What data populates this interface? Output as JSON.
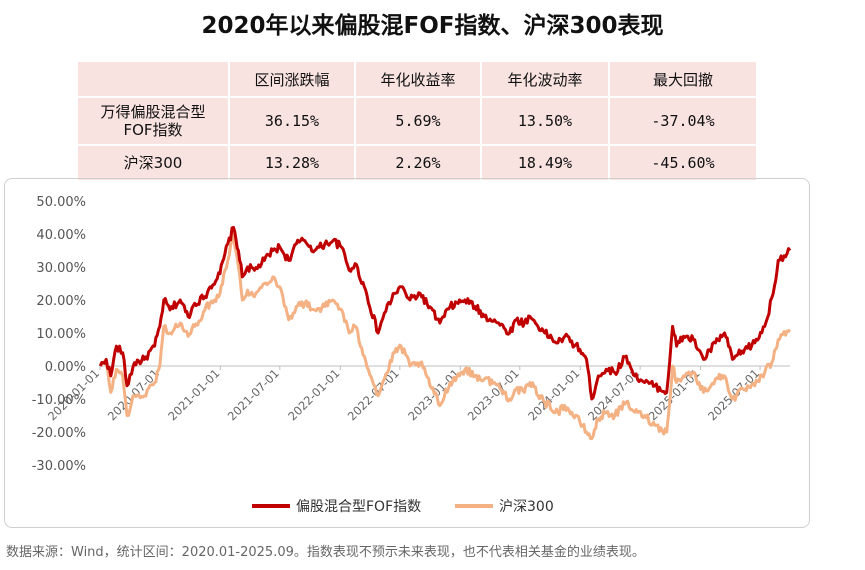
{
  "title": "2020年以来偏股混FOF指数、沪深300表现",
  "table": {
    "headers": [
      "",
      "区间涨跌幅",
      "年化收益率",
      "年化波动率",
      "最大回撤"
    ],
    "rows": [
      {
        "name": "万得偏股混合型FOF指数",
        "values": [
          "36.15%",
          "5.69%",
          "13.50%",
          "-37.04%"
        ]
      },
      {
        "name": "沪深300",
        "values": [
          "13.28%",
          "2.26%",
          "18.49%",
          "-45.60%"
        ]
      }
    ]
  },
  "source": "数据来源：Wind，统计区间：2020.01-2025.09。指数表现不预示未来表现，也不代表相关基金的业绩表现。",
  "colors": {
    "fof": "#c00000",
    "hs300": "#f4b183"
  },
  "chart_data": {
    "type": "line",
    "ylim": [
      -30,
      50
    ],
    "yticks": [
      -30,
      -20,
      -10,
      0,
      10,
      20,
      30,
      40,
      50
    ],
    "ytick_labels": [
      "-30.00%",
      "-20.00%",
      "-10.00%",
      "0.00%",
      "10.00%",
      "20.00%",
      "30.00%",
      "40.00%",
      "50.00%"
    ],
    "xlim": [
      "2020-01-01",
      "2025-09-30"
    ],
    "xticks": [
      "2020-01-01",
      "2020-07-01",
      "2021-01-01",
      "2021-07-01",
      "2022-01-01",
      "2022-07-01",
      "2023-01-01",
      "2023-07-01",
      "2024-01-01",
      "2024-07-01",
      "2025-01-01",
      "2025-07-01"
    ],
    "legend_placement": "bottom",
    "series": [
      {
        "name": "偏股混合型FOF指数",
        "points": [
          [
            "2020-01-02",
            0
          ],
          [
            "2020-01-20",
            2
          ],
          [
            "2020-02-03",
            -3
          ],
          [
            "2020-02-20",
            6
          ],
          [
            "2020-03-10",
            4
          ],
          [
            "2020-03-23",
            -6
          ],
          [
            "2020-04-15",
            1
          ],
          [
            "2020-05-15",
            2
          ],
          [
            "2020-06-15",
            6
          ],
          [
            "2020-07-01",
            12
          ],
          [
            "2020-07-13",
            20
          ],
          [
            "2020-08-01",
            17
          ],
          [
            "2020-09-01",
            20
          ],
          [
            "2020-09-25",
            15
          ],
          [
            "2020-10-15",
            19
          ],
          [
            "2020-11-15",
            21
          ],
          [
            "2020-12-01",
            24
          ],
          [
            "2020-12-31",
            28
          ],
          [
            "2021-01-15",
            34
          ],
          [
            "2021-02-10",
            42
          ],
          [
            "2021-02-25",
            35
          ],
          [
            "2021-03-09",
            27
          ],
          [
            "2021-03-25",
            30
          ],
          [
            "2021-04-15",
            29
          ],
          [
            "2021-05-15",
            32
          ],
          [
            "2021-06-10",
            35
          ],
          [
            "2021-07-01",
            36
          ],
          [
            "2021-07-28",
            32
          ],
          [
            "2021-08-20",
            37
          ],
          [
            "2021-09-15",
            38
          ],
          [
            "2021-10-15",
            35
          ],
          [
            "2021-11-15",
            37
          ],
          [
            "2021-12-10",
            38
          ],
          [
            "2022-01-05",
            36
          ],
          [
            "2022-01-28",
            29
          ],
          [
            "2022-02-15",
            31
          ],
          [
            "2022-03-15",
            24
          ],
          [
            "2022-04-26",
            10
          ],
          [
            "2022-05-15",
            16
          ],
          [
            "2022-06-15",
            22
          ],
          [
            "2022-07-05",
            24
          ],
          [
            "2022-08-01",
            20
          ],
          [
            "2022-09-01",
            22
          ],
          [
            "2022-10-31",
            13
          ],
          [
            "2022-12-01",
            18
          ],
          [
            "2023-01-15",
            20
          ],
          [
            "2023-02-15",
            18
          ],
          [
            "2023-03-15",
            15
          ],
          [
            "2023-04-15",
            14
          ],
          [
            "2023-05-31",
            10
          ],
          [
            "2023-06-20",
            14
          ],
          [
            "2023-07-15",
            13
          ],
          [
            "2023-08-01",
            15
          ],
          [
            "2023-09-15",
            10
          ],
          [
            "2023-10-25",
            7
          ],
          [
            "2023-11-15",
            9
          ],
          [
            "2023-12-31",
            5
          ],
          [
            "2024-01-20",
            2
          ],
          [
            "2024-02-05",
            -10
          ],
          [
            "2024-02-25",
            -3
          ],
          [
            "2024-03-20",
            -1
          ],
          [
            "2024-04-15",
            -2
          ],
          [
            "2024-05-20",
            3
          ],
          [
            "2024-06-15",
            -3
          ],
          [
            "2024-07-15",
            -5
          ],
          [
            "2024-08-15",
            -6
          ],
          [
            "2024-09-20",
            -8
          ],
          [
            "2024-10-08",
            12
          ],
          [
            "2024-10-20",
            6
          ],
          [
            "2024-11-10",
            9
          ],
          [
            "2024-12-10",
            8
          ],
          [
            "2025-01-10",
            2
          ],
          [
            "2025-02-15",
            7
          ],
          [
            "2025-03-15",
            10
          ],
          [
            "2025-04-08",
            2
          ],
          [
            "2025-05-15",
            5
          ],
          [
            "2025-06-15",
            7
          ],
          [
            "2025-07-15",
            12
          ],
          [
            "2025-08-10",
            22
          ],
          [
            "2025-08-25",
            32
          ],
          [
            "2025-09-30",
            35
          ]
        ]
      },
      {
        "name": "沪深300",
        "points": [
          [
            "2020-01-02",
            0
          ],
          [
            "2020-01-20",
            1
          ],
          [
            "2020-02-03",
            -8
          ],
          [
            "2020-02-20",
            -1
          ],
          [
            "2020-03-10",
            -3
          ],
          [
            "2020-03-23",
            -15
          ],
          [
            "2020-04-15",
            -9
          ],
          [
            "2020-05-15",
            -9
          ],
          [
            "2020-06-15",
            -5
          ],
          [
            "2020-07-01",
            0
          ],
          [
            "2020-07-13",
            12
          ],
          [
            "2020-08-01",
            10
          ],
          [
            "2020-09-01",
            13
          ],
          [
            "2020-09-25",
            9
          ],
          [
            "2020-10-15",
            12
          ],
          [
            "2020-11-15",
            17
          ],
          [
            "2020-12-01",
            19
          ],
          [
            "2020-12-31",
            22
          ],
          [
            "2021-01-15",
            29
          ],
          [
            "2021-02-10",
            40
          ],
          [
            "2021-02-25",
            30
          ],
          [
            "2021-03-09",
            20
          ],
          [
            "2021-03-25",
            23
          ],
          [
            "2021-04-15",
            21
          ],
          [
            "2021-05-15",
            25
          ],
          [
            "2021-06-10",
            27
          ],
          [
            "2021-07-01",
            24
          ],
          [
            "2021-07-28",
            14
          ],
          [
            "2021-08-20",
            18
          ],
          [
            "2021-09-15",
            19
          ],
          [
            "2021-10-15",
            17
          ],
          [
            "2021-11-15",
            18
          ],
          [
            "2021-12-10",
            20
          ],
          [
            "2022-01-05",
            17
          ],
          [
            "2022-01-28",
            10
          ],
          [
            "2022-02-15",
            12
          ],
          [
            "2022-03-15",
            3
          ],
          [
            "2022-04-26",
            -9
          ],
          [
            "2022-05-15",
            -4
          ],
          [
            "2022-06-15",
            4
          ],
          [
            "2022-07-05",
            6
          ],
          [
            "2022-08-01",
            0
          ],
          [
            "2022-09-01",
            1
          ],
          [
            "2022-10-31",
            -12
          ],
          [
            "2022-12-01",
            -5
          ],
          [
            "2023-01-15",
            -1
          ],
          [
            "2023-02-15",
            -3
          ],
          [
            "2023-03-15",
            -4
          ],
          [
            "2023-04-15",
            -5
          ],
          [
            "2023-05-31",
            -10
          ],
          [
            "2023-06-20",
            -7
          ],
          [
            "2023-07-15",
            -8
          ],
          [
            "2023-08-01",
            -5
          ],
          [
            "2023-09-15",
            -11
          ],
          [
            "2023-10-25",
            -14
          ],
          [
            "2023-11-15",
            -12
          ],
          [
            "2023-12-31",
            -17
          ],
          [
            "2024-01-20",
            -20
          ],
          [
            "2024-02-05",
            -22
          ],
          [
            "2024-02-25",
            -16
          ],
          [
            "2024-03-20",
            -14
          ],
          [
            "2024-04-15",
            -15
          ],
          [
            "2024-05-20",
            -11
          ],
          [
            "2024-06-15",
            -14
          ],
          [
            "2024-07-15",
            -15
          ],
          [
            "2024-08-15",
            -18
          ],
          [
            "2024-09-20",
            -20
          ],
          [
            "2024-10-08",
            0
          ],
          [
            "2024-10-20",
            -5
          ],
          [
            "2024-11-10",
            -3
          ],
          [
            "2024-12-10",
            -2
          ],
          [
            "2025-01-10",
            -8
          ],
          [
            "2025-02-15",
            -4
          ],
          [
            "2025-03-15",
            -3
          ],
          [
            "2025-04-08",
            -10
          ],
          [
            "2025-05-15",
            -7
          ],
          [
            "2025-06-15",
            -6
          ],
          [
            "2025-07-15",
            -2
          ],
          [
            "2025-08-10",
            2
          ],
          [
            "2025-08-25",
            8
          ],
          [
            "2025-09-30",
            11
          ]
        ]
      }
    ]
  }
}
